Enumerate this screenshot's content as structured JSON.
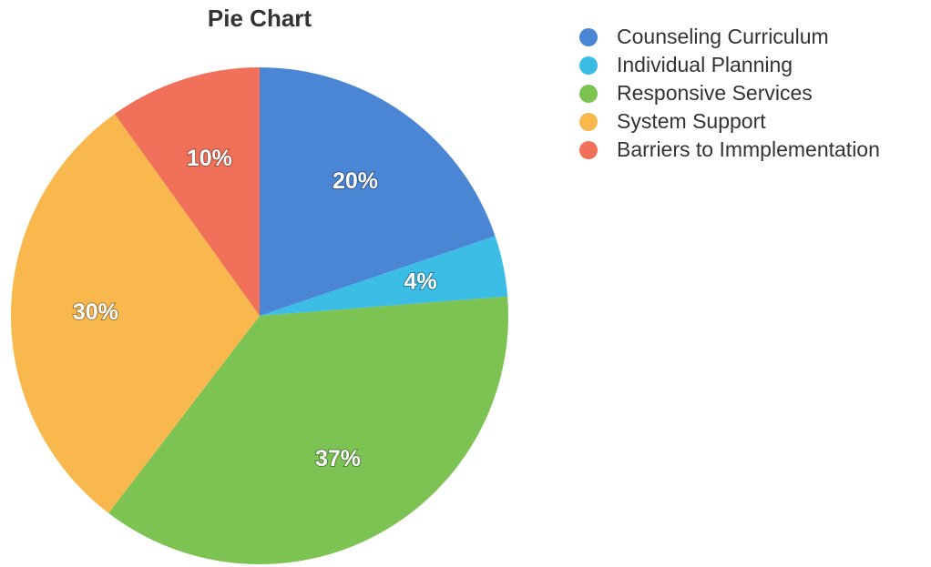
{
  "chart_data": {
    "type": "pie",
    "title": "Pie Chart",
    "categories": [
      "Counseling Curriculum",
      "Individual Planning",
      "Responsive Services",
      "System Support",
      "Barriers to Immplementation"
    ],
    "values": [
      20,
      4,
      37,
      30,
      10
    ],
    "value_labels": [
      "20%",
      "4%",
      "37%",
      "30%",
      "10%"
    ],
    "colors": [
      "#4a86d4",
      "#3bbde6",
      "#7cc353",
      "#f8b84e",
      "#f0705a"
    ],
    "legend": "right"
  }
}
